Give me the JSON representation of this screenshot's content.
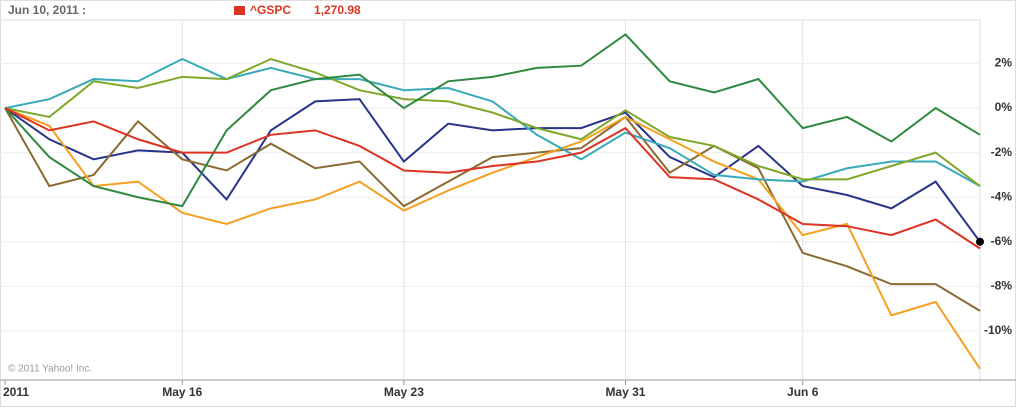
{
  "chart_data": {
    "type": "line",
    "date_label": "Jun 10, 2011 :",
    "quote_label": "1,270.98",
    "copyright": "© 2011 Yahoo! Inc.",
    "categories": [
      "2011",
      null,
      null,
      null,
      "May 16",
      null,
      null,
      null,
      null,
      "May 23",
      null,
      null,
      null,
      null,
      "May 31",
      null,
      null,
      null,
      "Jun 6",
      null,
      null,
      null,
      null
    ],
    "ylim": [
      -12.2,
      3.95
    ],
    "yticks": [
      {
        "value": 2,
        "label": "2%"
      },
      {
        "value": 0,
        "label": "0%"
      },
      {
        "value": -2,
        "label": "-2%"
      },
      {
        "value": -4,
        "label": "-4%"
      },
      {
        "value": -6,
        "label": "-6%"
      },
      {
        "value": -8,
        "label": "-8%"
      },
      {
        "value": -10,
        "label": "-10%"
      }
    ],
    "grid": true,
    "series": [
      {
        "name": "^GSPC",
        "color": "#dd3322",
        "values": [
          0,
          -1.0,
          -0.6,
          -1.4,
          -2.0,
          -2.0,
          -1.2,
          -1.0,
          -1.7,
          -2.8,
          -2.9,
          -2.6,
          -2.4,
          -2.0,
          -0.9,
          -3.1,
          -3.2,
          -4.1,
          -5.2,
          -5.3,
          -5.7,
          -5.0,
          -6.3
        ]
      },
      {
        "color": "#2d8a3e",
        "values": [
          0,
          -2.2,
          -3.5,
          -4.0,
          -4.4,
          -1.0,
          0.8,
          1.3,
          1.5,
          0,
          1.2,
          1.4,
          1.8,
          1.9,
          3.3,
          1.2,
          0.7,
          1.3,
          -0.9,
          -0.4,
          -1.5,
          0,
          -1.2
        ]
      },
      {
        "color": "#7fa82a",
        "values": [
          0,
          -0.4,
          1.2,
          0.9,
          1.4,
          1.3,
          2.2,
          1.6,
          0.8,
          0.4,
          0.3,
          -0.2,
          -0.9,
          -1.4,
          -0.1,
          -1.3,
          -1.7,
          -2.6,
          -3.2,
          -3.2,
          -2.6,
          -2.0,
          -3.5
        ]
      },
      {
        "color": "#3aaabb",
        "values": [
          0,
          0.4,
          1.3,
          1.2,
          2.2,
          1.3,
          1.8,
          1.3,
          1.3,
          0.8,
          0.9,
          0.3,
          -1.2,
          -2.3,
          -1.1,
          -1.8,
          -3.0,
          -3.2,
          -3.3,
          -2.7,
          -2.4,
          -2.4,
          -3.5
        ]
      },
      {
        "color": "#f5a020",
        "values": [
          0,
          -0.8,
          -3.5,
          -3.3,
          -4.7,
          -5.2,
          -4.5,
          -4.1,
          -3.3,
          -4.6,
          -3.7,
          -2.9,
          -2.2,
          -1.5,
          -0.4,
          -1.4,
          -2.4,
          -3.2,
          -5.7,
          -5.2,
          -9.3,
          -8.7,
          -11.7
        ]
      },
      {
        "color": "#8a6a30",
        "values": [
          0,
          -3.5,
          -3.0,
          -0.6,
          -2.3,
          -2.8,
          -1.6,
          -2.7,
          -2.4,
          -4.4,
          -3.3,
          -2.2,
          -2.0,
          -1.8,
          -0.4,
          -2.9,
          -1.7,
          -2.7,
          -6.5,
          -7.1,
          -7.9,
          -7.9,
          -9.1
        ]
      },
      {
        "color": "#28348a",
        "values": [
          0,
          -1.4,
          -2.3,
          -1.9,
          -2.0,
          -4.1,
          -1.0,
          0.3,
          0.4,
          -2.4,
          -0.7,
          -1.0,
          -0.9,
          -0.9,
          -0.2,
          -2.2,
          -3.1,
          -1.7,
          -3.5,
          -3.9,
          -4.5,
          -3.3,
          -6.0
        ]
      }
    ]
  }
}
